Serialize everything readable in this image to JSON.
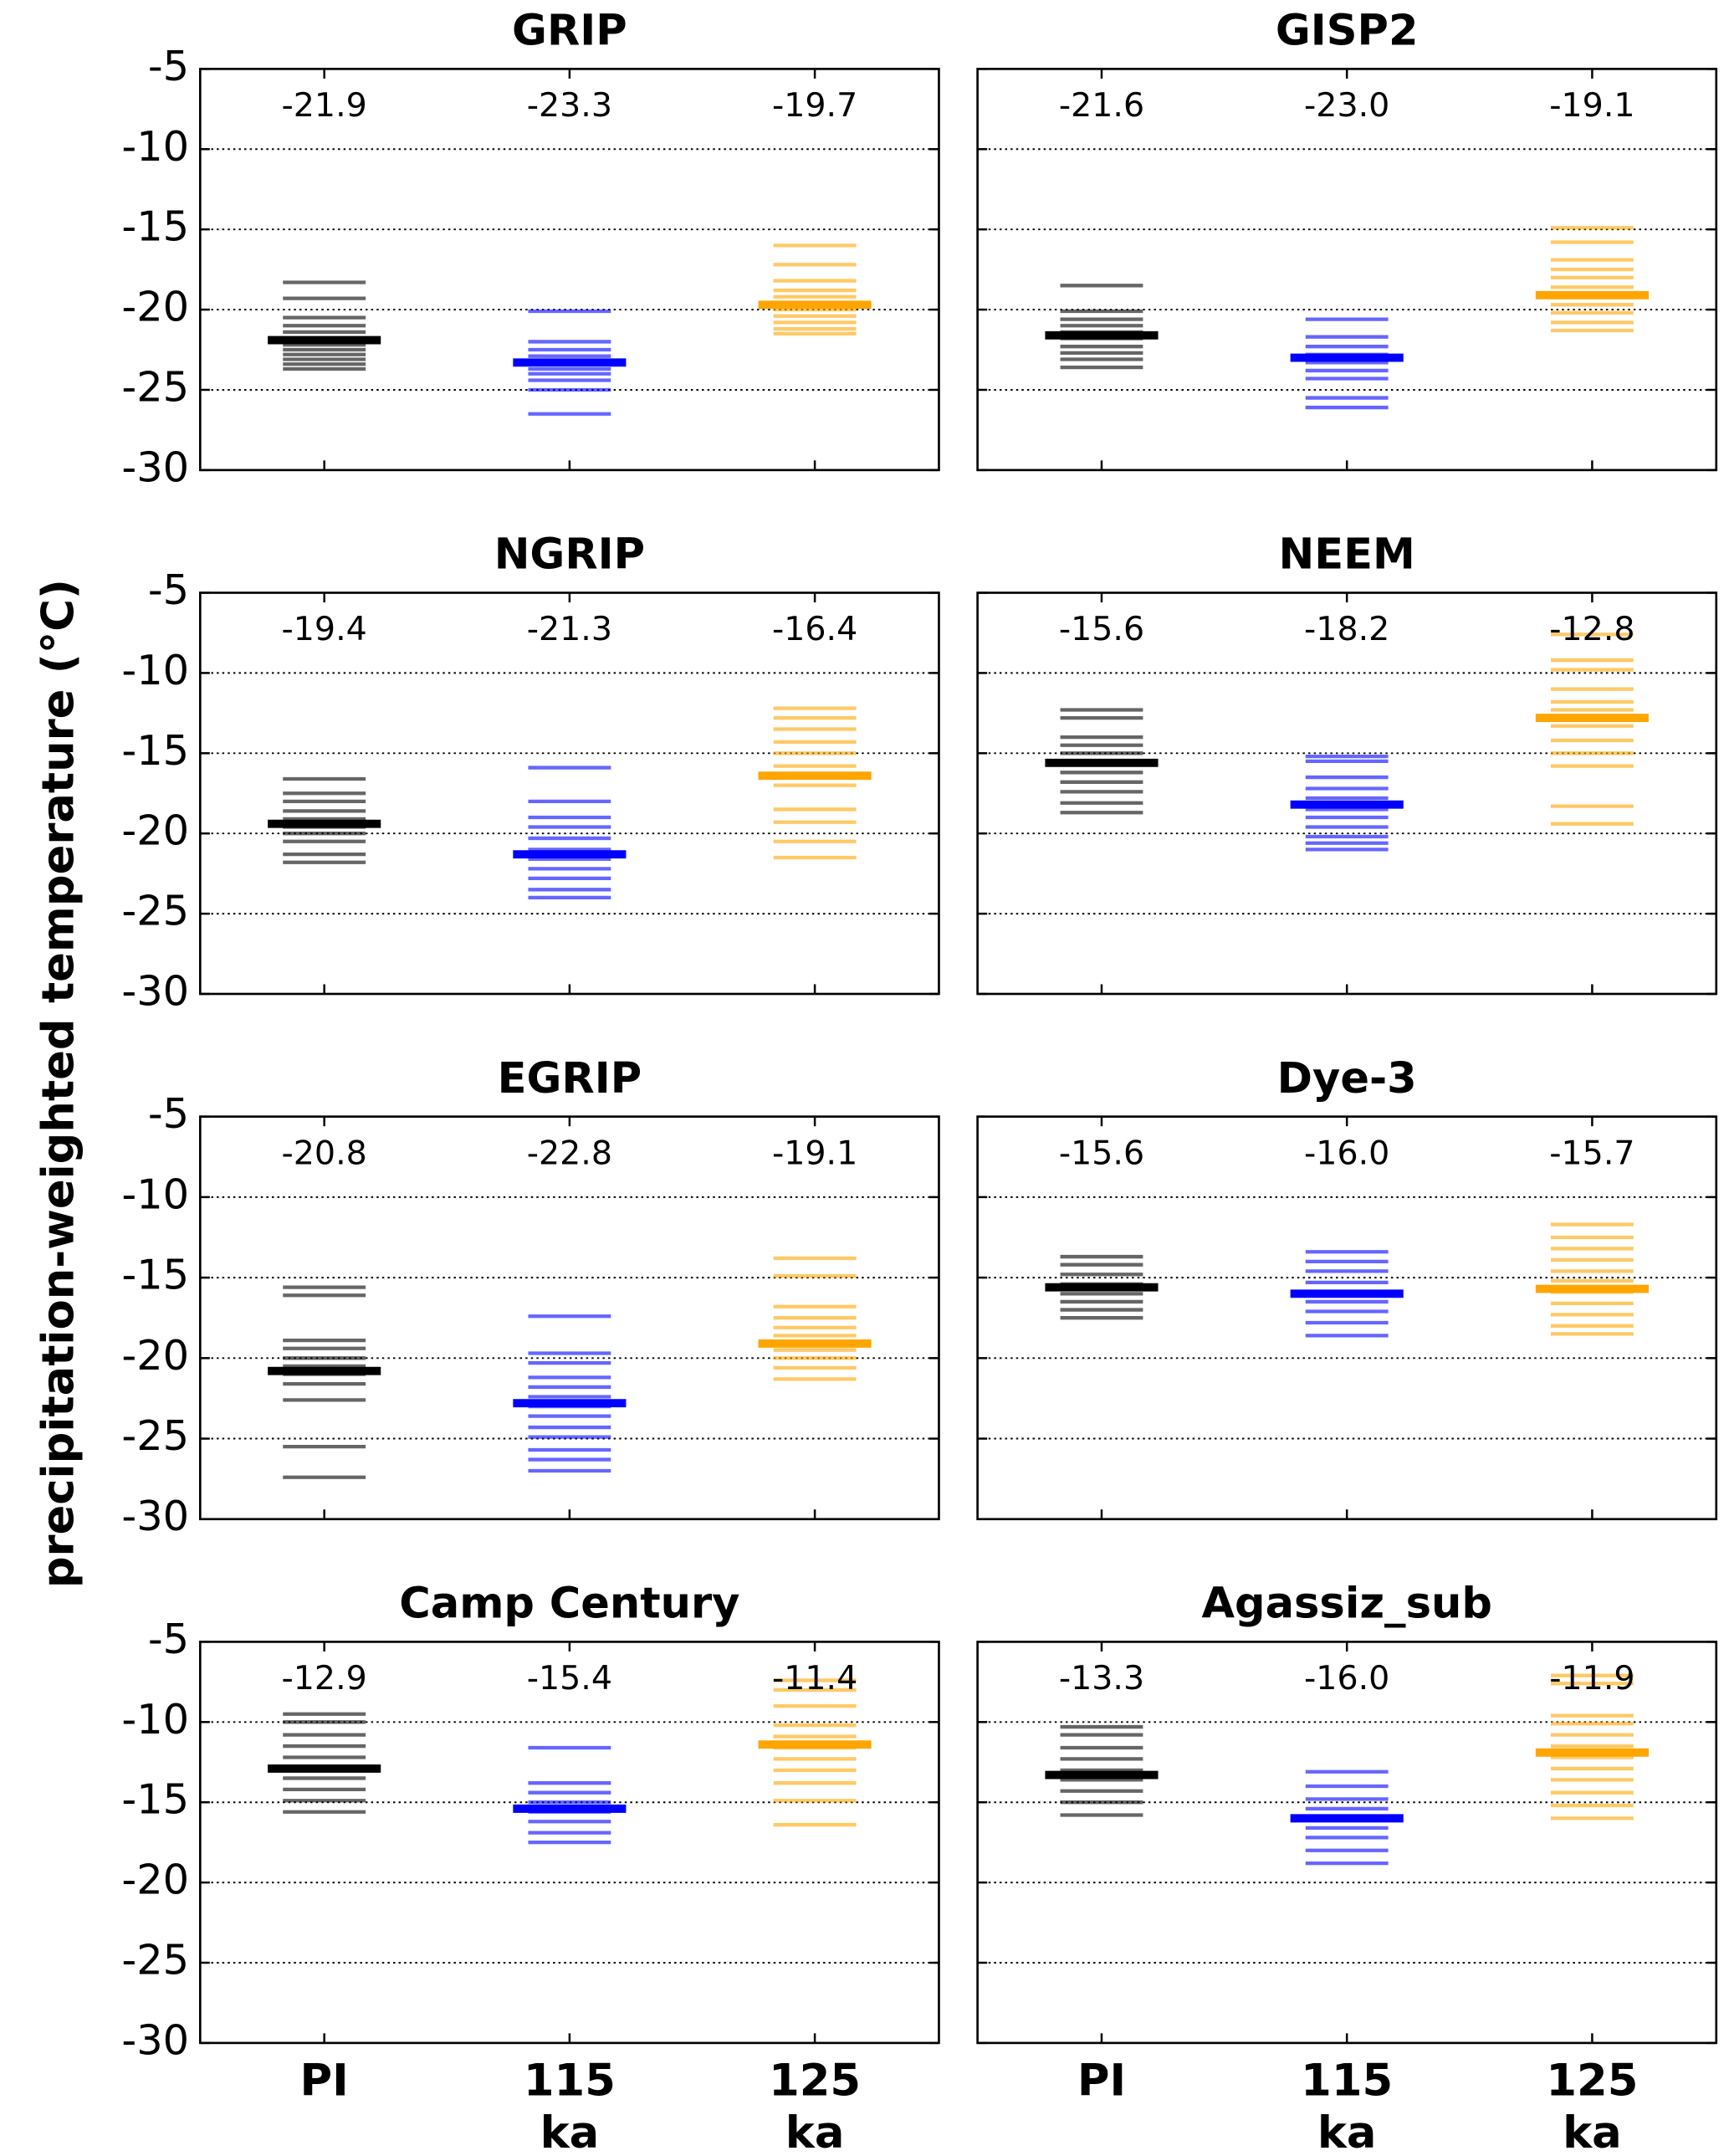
{
  "ylabel": "precipitation-weighted temperature (°C)",
  "chart_data": [
    {
      "type": "strip",
      "title": "GRIP",
      "categories": [
        "PI",
        "115 ka",
        "125 ka"
      ],
      "show_xlabels": false,
      "colors": [
        "#000000",
        "#0000ff",
        "#ffa500"
      ],
      "means": [
        -21.9,
        -23.3,
        -19.7
      ],
      "value_labels": [
        "-21.9",
        "-23.3",
        "-19.7"
      ],
      "members": [
        [
          -18.3,
          -19.3,
          -20.5,
          -21,
          -21.4,
          -21.8,
          -22.2,
          -22.5,
          -22.8,
          -23.1,
          -23.4,
          -23.7
        ],
        [
          -20.1,
          -22,
          -22.5,
          -22.9,
          -23.3,
          -23.7,
          -24,
          -24.4,
          -25,
          -26.5
        ],
        [
          -16,
          -17.2,
          -18.2,
          -18.8,
          -19.2,
          -19.6,
          -20,
          -20.4,
          -20.8,
          -21.2,
          -21.5
        ]
      ],
      "ylim": [
        -30,
        -5
      ],
      "yticks": [
        -30,
        -25,
        -20,
        -15,
        -10,
        -5
      ],
      "grid": true,
      "show_yticklabels": true
    },
    {
      "type": "strip",
      "title": "GISP2",
      "categories": [
        "PI",
        "115 ka",
        "125 ka"
      ],
      "show_xlabels": false,
      "colors": [
        "#000000",
        "#0000ff",
        "#ffa500"
      ],
      "means": [
        -21.6,
        -23,
        -19.1
      ],
      "value_labels": [
        "-21.6",
        "-23.0",
        "-19.1"
      ],
      "members": [
        [
          -18.5,
          -20.1,
          -20.6,
          -21,
          -21.4,
          -21.8,
          -22.3,
          -22.7,
          -23.1,
          -23.6
        ],
        [
          -20.6,
          -21.7,
          -22.3,
          -22.8,
          -23.3,
          -23.8,
          -24.3,
          -25.5,
          -26.1
        ],
        [
          -14.9,
          -15.8,
          -16.9,
          -17.5,
          -18,
          -18.6,
          -19.1,
          -19.7,
          -20.2,
          -20.8,
          -21.3
        ]
      ],
      "ylim": [
        -30,
        -5
      ],
      "yticks": [
        -30,
        -25,
        -20,
        -15,
        -10,
        -5
      ],
      "grid": true,
      "show_yticklabels": false
    },
    {
      "type": "strip",
      "title": "NGRIP",
      "categories": [
        "PI",
        "115 ka",
        "125 ka"
      ],
      "show_xlabels": false,
      "colors": [
        "#000000",
        "#0000ff",
        "#ffa500"
      ],
      "means": [
        -19.4,
        -21.3,
        -16.4
      ],
      "value_labels": [
        "-19.4",
        "-21.3",
        "-16.4"
      ],
      "members": [
        [
          -16.6,
          -17.5,
          -18,
          -18.6,
          -19.1,
          -19.6,
          -20,
          -20.5,
          -21.3,
          -21.8
        ],
        [
          -15.9,
          -18,
          -19,
          -19.6,
          -20.3,
          -21,
          -21.6,
          -22.2,
          -22.8,
          -23.5,
          -24
        ],
        [
          -12.2,
          -12.8,
          -13.5,
          -14.3,
          -15,
          -15.8,
          -16.4,
          -17,
          -18.5,
          -19.3,
          -20.5,
          -21.5
        ]
      ],
      "ylim": [
        -30,
        -5
      ],
      "yticks": [
        -30,
        -25,
        -20,
        -15,
        -10,
        -5
      ],
      "grid": true,
      "show_yticklabels": true
    },
    {
      "type": "strip",
      "title": "NEEM",
      "categories": [
        "PI",
        "115 ka",
        "125 ka"
      ],
      "show_xlabels": false,
      "colors": [
        "#000000",
        "#0000ff",
        "#ffa500"
      ],
      "means": [
        -15.6,
        -18.2,
        -12.8
      ],
      "value_labels": [
        "-15.6",
        "-18.2",
        "-12.8"
      ],
      "members": [
        [
          -12.3,
          -12.8,
          -14,
          -14.5,
          -15,
          -15.6,
          -16.2,
          -16.8,
          -17.4,
          -18.1,
          -18.7
        ],
        [
          -15.2,
          -15.5,
          -16.5,
          -17.2,
          -17.8,
          -18.5,
          -19,
          -19.6,
          -20.2,
          -20.6,
          -21
        ],
        [
          -7.6,
          -9.2,
          -9.8,
          -11,
          -11.8,
          -12.3,
          -13.3,
          -14.2,
          -15,
          -15.8,
          -18.3,
          -19.4
        ]
      ],
      "ylim": [
        -30,
        -5
      ],
      "yticks": [
        -30,
        -25,
        -20,
        -15,
        -10,
        -5
      ],
      "grid": true,
      "show_yticklabels": false
    },
    {
      "type": "strip",
      "title": "EGRIP",
      "categories": [
        "PI",
        "115 ka",
        "125 ka"
      ],
      "show_xlabels": false,
      "colors": [
        "#000000",
        "#0000ff",
        "#ffa500"
      ],
      "means": [
        -20.8,
        -22.8,
        -19.1
      ],
      "value_labels": [
        "-20.8",
        "-22.8",
        "-19.1"
      ],
      "members": [
        [
          -15.6,
          -16.1,
          -18.9,
          -19.4,
          -20,
          -20.5,
          -21,
          -21.6,
          -22.6,
          -25.5,
          -27.4
        ],
        [
          -17.4,
          -19.7,
          -20.3,
          -21.2,
          -21.8,
          -22.4,
          -23,
          -23.6,
          -24.3,
          -24.9,
          -25.7,
          -26.3,
          -27
        ],
        [
          -13.8,
          -14.9,
          -16.8,
          -17.5,
          -18.1,
          -18.6,
          -19.5,
          -20,
          -20.6,
          -21.3
        ]
      ],
      "ylim": [
        -30,
        -5
      ],
      "yticks": [
        -30,
        -25,
        -20,
        -15,
        -10,
        -5
      ],
      "grid": true,
      "show_yticklabels": true
    },
    {
      "type": "strip",
      "title": "Dye-3",
      "categories": [
        "PI",
        "115 ka",
        "125 ka"
      ],
      "show_xlabels": false,
      "colors": [
        "#000000",
        "#0000ff",
        "#ffa500"
      ],
      "means": [
        -15.6,
        -16,
        -15.7
      ],
      "value_labels": [
        "-15.6",
        "-16.0",
        "-15.7"
      ],
      "members": [
        [
          -13.7,
          -14.2,
          -14.8,
          -15.4,
          -16,
          -16.5,
          -17,
          -17.5
        ],
        [
          -13.4,
          -14,
          -14.6,
          -15.3,
          -15.9,
          -16.5,
          -17.1,
          -17.8,
          -18.6
        ],
        [
          -11.7,
          -12.5,
          -13.2,
          -13.9,
          -14.6,
          -15.2,
          -15.9,
          -16.6,
          -17.3,
          -18,
          -18.5
        ]
      ],
      "ylim": [
        -30,
        -5
      ],
      "yticks": [
        -30,
        -25,
        -20,
        -15,
        -10,
        -5
      ],
      "grid": true,
      "show_yticklabels": false
    },
    {
      "type": "strip",
      "title": "Camp Century",
      "categories": [
        "PI",
        "115 ka",
        "125 ka"
      ],
      "show_xlabels": true,
      "colors": [
        "#000000",
        "#0000ff",
        "#ffa500"
      ],
      "means": [
        -12.9,
        -15.4,
        -11.4
      ],
      "value_labels": [
        "-12.9",
        "-15.4",
        "-11.4"
      ],
      "members": [
        [
          -9.5,
          -10,
          -10.8,
          -11.5,
          -12.2,
          -12.8,
          -13.5,
          -14.2,
          -14.9,
          -15.6
        ],
        [
          -11.6,
          -13.8,
          -14.4,
          -15,
          -15.6,
          -16.2,
          -16.9,
          -17.5
        ],
        [
          -7.4,
          -8,
          -9,
          -10.2,
          -10.9,
          -11.6,
          -12.3,
          -13,
          -13.8,
          -14.9,
          -16.4
        ]
      ],
      "ylim": [
        -30,
        -5
      ],
      "yticks": [
        -30,
        -25,
        -20,
        -15,
        -10,
        -5
      ],
      "grid": true,
      "show_yticklabels": true
    },
    {
      "type": "strip",
      "title": "Agassiz_sub",
      "categories": [
        "PI",
        "115 ka",
        "125 ka"
      ],
      "show_xlabels": true,
      "colors": [
        "#000000",
        "#0000ff",
        "#ffa500"
      ],
      "means": [
        -13.3,
        -16,
        -11.9
      ],
      "value_labels": [
        "-13.3",
        "-16.0",
        "-11.9"
      ],
      "members": [
        [
          -10.3,
          -10.8,
          -11.6,
          -12.3,
          -13,
          -13.6,
          -14.3,
          -15,
          -15.8
        ],
        [
          -13.1,
          -14,
          -14.8,
          -15.4,
          -16,
          -16.6,
          -17.2,
          -18,
          -18.8
        ],
        [
          -7.1,
          -7.6,
          -9.6,
          -10.1,
          -10.8,
          -11.5,
          -12.2,
          -12.9,
          -13.6,
          -14.4,
          -15.2,
          -16
        ]
      ],
      "ylim": [
        -30,
        -5
      ],
      "yticks": [
        -30,
        -25,
        -20,
        -15,
        -10,
        -5
      ],
      "grid": true,
      "show_yticklabels": false
    }
  ]
}
